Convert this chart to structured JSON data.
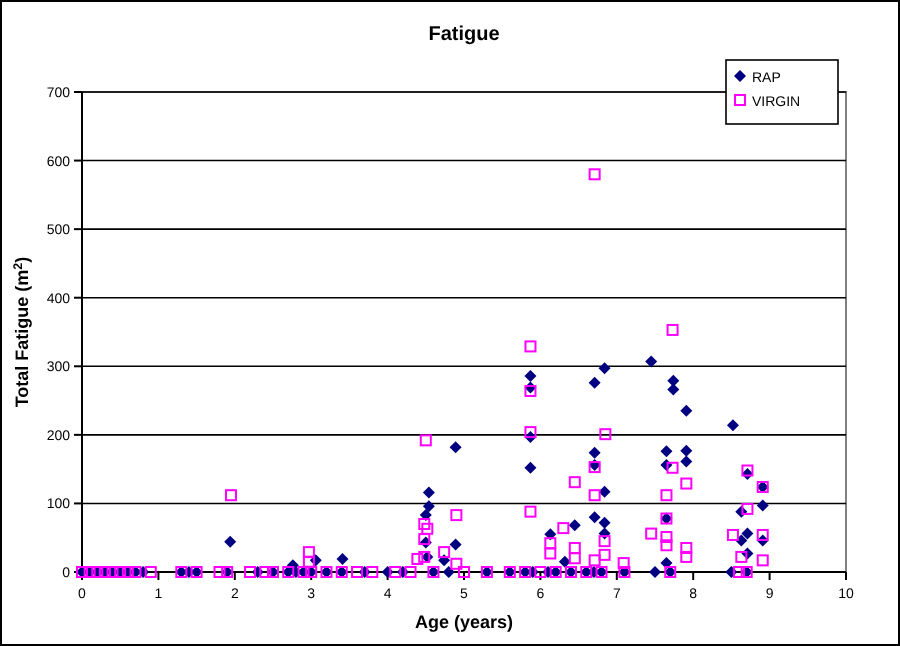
{
  "chart_data": {
    "type": "scatter",
    "title": "Fatigue",
    "xlabel": "Age (years)",
    "ylabel": "Total Fatigue (m$^{2}$)",
    "xlim": [
      0,
      10
    ],
    "ylim": [
      0,
      700
    ],
    "xticks": [
      0,
      1,
      2,
      3,
      4,
      5,
      6,
      7,
      8,
      9,
      10
    ],
    "yticks": [
      0,
      100,
      200,
      300,
      400,
      500,
      600,
      700
    ],
    "grid": "y",
    "legend": "top right",
    "series": [
      {
        "name": "RAP",
        "color": "#000080",
        "marker": "diamond",
        "x": [
          0,
          0.1,
          0.2,
          0.3,
          0.4,
          0.5,
          0.6,
          0.7,
          0.8,
          1.3,
          1.4,
          1.5,
          1.9,
          2.3,
          2.5,
          2.7,
          2.8,
          2.9,
          3.0,
          3.2,
          3.4,
          3.7,
          4.0,
          4.2,
          4.6,
          4.8,
          5.3,
          5.6,
          5.8,
          5.9,
          6.1,
          6.2,
          6.4,
          6.6,
          6.7,
          6.8,
          7.1,
          7.5,
          7.7,
          8.5,
          8.7,
          1.94,
          3.06,
          3.41,
          2.76,
          4.5,
          4.54,
          4.54,
          4.5,
          4.74,
          4.52,
          4.89,
          4.89,
          5.87,
          5.87,
          5.87,
          5.87,
          6.13,
          6.32,
          6.45,
          6.71,
          6.71,
          6.71,
          6.71,
          6.84,
          6.84,
          6.84,
          6.84,
          7.45,
          7.74,
          7.74,
          7.65,
          7.65,
          7.65,
          7.65,
          7.91,
          7.91,
          7.91,
          8.52,
          8.63,
          8.71,
          8.71,
          8.71,
          8.63,
          8.91,
          8.91,
          8.91
        ],
        "values": [
          0,
          0,
          0,
          0,
          0,
          0,
          0,
          0,
          0,
          0,
          0,
          0,
          0,
          0,
          0,
          0,
          0,
          0,
          0,
          0,
          0,
          0,
          0,
          0,
          0,
          0,
          0,
          0,
          0,
          0,
          0,
          0,
          0,
          0,
          0,
          0,
          0,
          0,
          0,
          0,
          0,
          44,
          17,
          19,
          10,
          83,
          116,
          96,
          43,
          17,
          22,
          182,
          40,
          286,
          269,
          197,
          152,
          55,
          15,
          68,
          276,
          174,
          156,
          80,
          297,
          117,
          72,
          56,
          307,
          279,
          266,
          176,
          156,
          78,
          13,
          235,
          177,
          161,
          214,
          88,
          143,
          56,
          27,
          46,
          97,
          46,
          124
        ]
      },
      {
        "name": "VIRGIN",
        "color": "#ff00ff",
        "marker": "square",
        "x": [
          0,
          0.1,
          0.2,
          0.3,
          0.4,
          0.5,
          0.6,
          0.7,
          0.9,
          1.3,
          1.5,
          1.8,
          1.9,
          2.2,
          2.4,
          2.5,
          2.7,
          2.9,
          3.0,
          3.2,
          3.4,
          3.6,
          3.8,
          4.1,
          4.3,
          4.6,
          5.0,
          5.3,
          5.6,
          5.8,
          6.0,
          6.2,
          6.4,
          6.6,
          6.8,
          7.1,
          7.7,
          8.6,
          8.7,
          1.95,
          2.97,
          2.97,
          4.39,
          4.5,
          4.48,
          4.52,
          4.48,
          4.48,
          4.74,
          4.9,
          4.9,
          6.71,
          5.87,
          7.73,
          5.87,
          5.87,
          6.85,
          6.71,
          6.45,
          7.73,
          8.71,
          6.71,
          7.65,
          7.91,
          8.91,
          5.87,
          8.71,
          6.3,
          6.13,
          6.13,
          6.45,
          6.45,
          6.84,
          6.84,
          7.45,
          7.65,
          7.65,
          7.91,
          7.91,
          8.52,
          8.63,
          8.91,
          8.91,
          7.09,
          7.65,
          6.71
        ],
        "values": [
          0,
          0,
          0,
          0,
          0,
          0,
          0,
          0,
          0,
          0,
          0,
          0,
          0,
          0,
          0,
          0,
          0,
          0,
          0,
          0,
          0,
          0,
          0,
          0,
          0,
          0,
          0,
          0,
          0,
          0,
          0,
          0,
          0,
          0,
          0,
          0,
          0,
          0,
          0,
          112,
          29,
          15,
          19,
          192,
          70,
          63,
          48,
          22,
          29,
          83,
          12,
          580,
          329,
          353,
          264,
          204,
          201,
          153,
          131,
          152,
          148,
          112,
          112,
          129,
          124,
          88,
          92,
          64,
          42,
          27,
          35,
          20,
          45,
          25,
          56,
          51,
          39,
          35,
          22,
          54,
          22,
          54,
          17,
          13,
          78,
          17
        ]
      }
    ]
  }
}
